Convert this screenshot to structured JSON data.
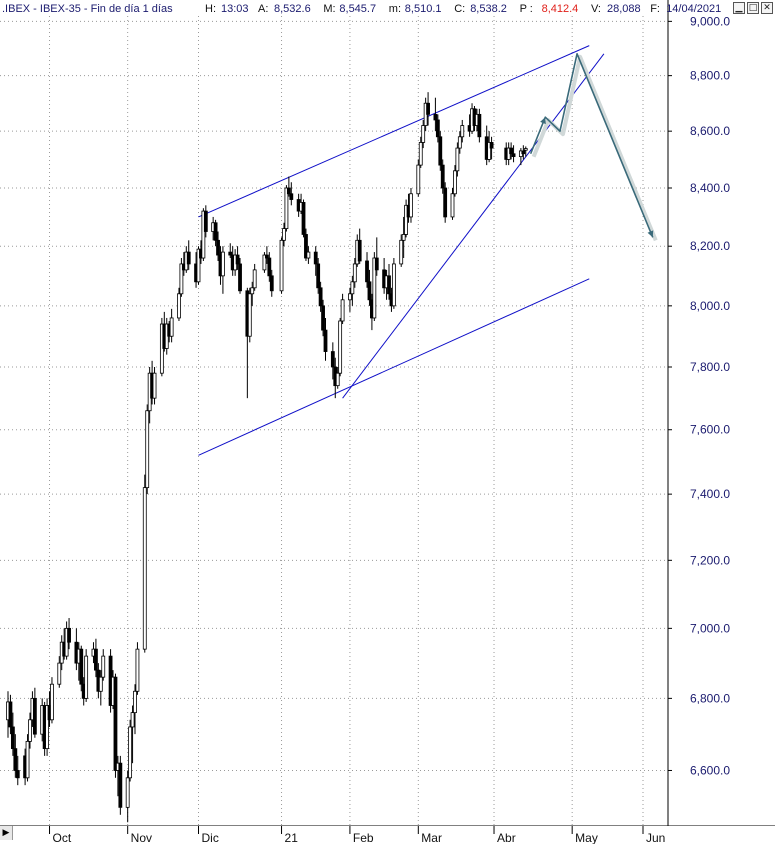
{
  "header": {
    "symbol": ".IBEX - IBEX-35 - Fin de día 1 días",
    "fields": [
      {
        "label": "H:",
        "value": "13:03",
        "color": "#1a1a6e"
      },
      {
        "label": "A:",
        "value": "8,532.6",
        "color": "#1a1a6e"
      },
      {
        "label": "M:",
        "value": "8,545.7",
        "color": "#1a1a6e"
      },
      {
        "label": "m:",
        "value": "8,510.1",
        "color": "#1a1a6e"
      },
      {
        "label": "C:",
        "value": "8,538.2",
        "color": "#1a1a6e"
      },
      {
        "label": "P :",
        "value": "8,412.4",
        "color": "#e0201a"
      },
      {
        "label": "V:",
        "value": "28,088",
        "color": "#1a1a6e"
      },
      {
        "label": "F:",
        "value": "14/04/2021",
        "color": "#1a1a6e"
      }
    ]
  },
  "window_buttons": [
    {
      "name": "minimize-button",
      "glyph": "▁"
    },
    {
      "name": "maximize-button",
      "glyph": "□"
    },
    {
      "name": "close-button",
      "glyph": "✕"
    }
  ],
  "chart_data": {
    "type": "candlestick",
    "y_axis": {
      "ticks": [
        6600,
        6800,
        7000,
        7200,
        7400,
        7600,
        7800,
        8000,
        8200,
        8400,
        8600,
        8800,
        9000
      ],
      "tick_labels": [
        "6,600.0",
        "6,800.0",
        "7,000.0",
        "7,200.0",
        "7,400.0",
        "7,600.0",
        "7,800.0",
        "8,000.0",
        "8,200.0",
        "8,400.0",
        "8,600.0",
        "8,800.0",
        "9,000.0"
      ],
      "range": [
        6450,
        9020
      ],
      "scale": "log",
      "position": "right"
    },
    "x_axis": {
      "labels": [
        "Oct",
        "Nov",
        "Dic",
        "21",
        "Feb",
        "Mar",
        "Abr",
        "May",
        "Jun"
      ],
      "label_dates": [
        "2020-10-01",
        "2020-11-02",
        "2020-12-01",
        "2021-01-04",
        "2021-02-01",
        "2021-03-01",
        "2021-04-01",
        "2021-05-03",
        "2021-06-01"
      ]
    },
    "grid": true,
    "up_color": "#ffffff",
    "down_color": "#000000",
    "candles": [
      [
        "2020-09-14",
        6740,
        6820,
        6690,
        6790
      ],
      [
        "2020-09-15",
        6790,
        6810,
        6700,
        6720
      ],
      [
        "2020-09-16",
        6720,
        6760,
        6640,
        6660
      ],
      [
        "2020-09-17",
        6660,
        6700,
        6580,
        6600
      ],
      [
        "2020-09-18",
        6600,
        6640,
        6560,
        6580
      ],
      [
        "2020-09-21",
        6640,
        6660,
        6560,
        6580
      ],
      [
        "2020-09-22",
        6580,
        6700,
        6570,
        6680
      ],
      [
        "2020-09-23",
        6680,
        6760,
        6660,
        6740
      ],
      [
        "2020-09-24",
        6740,
        6820,
        6720,
        6800
      ],
      [
        "2020-09-25",
        6800,
        6830,
        6690,
        6700
      ],
      [
        "2020-09-28",
        6700,
        6800,
        6680,
        6780
      ],
      [
        "2020-09-29",
        6780,
        6790,
        6640,
        6660
      ],
      [
        "2020-09-30",
        6660,
        6800,
        6640,
        6780
      ],
      [
        "2020-10-01",
        6780,
        6820,
        6720,
        6740
      ],
      [
        "2020-10-02",
        6740,
        6860,
        6730,
        6840
      ],
      [
        "2020-10-05",
        6840,
        6920,
        6830,
        6900
      ],
      [
        "2020-10-06",
        6900,
        6980,
        6880,
        6960
      ],
      [
        "2020-10-07",
        6960,
        7000,
        6910,
        6920
      ],
      [
        "2020-10-08",
        6920,
        7020,
        6910,
        7000
      ],
      [
        "2020-10-09",
        7000,
        7030,
        6940,
        6960
      ],
      [
        "2020-10-12",
        6960,
        7000,
        6880,
        6900
      ],
      [
        "2020-10-13",
        6900,
        6960,
        6850,
        6940
      ],
      [
        "2020-10-14",
        6940,
        6950,
        6820,
        6840
      ],
      [
        "2020-10-15",
        6840,
        6860,
        6780,
        6800
      ],
      [
        "2020-10-16",
        6800,
        6940,
        6790,
        6920
      ],
      [
        "2020-10-19",
        6920,
        6960,
        6900,
        6940
      ],
      [
        "2020-10-20",
        6940,
        6970,
        6860,
        6880
      ],
      [
        "2020-10-21",
        6880,
        6900,
        6800,
        6820
      ],
      [
        "2020-10-22",
        6820,
        6880,
        6780,
        6860
      ],
      [
        "2020-10-23",
        6860,
        6940,
        6850,
        6920
      ],
      [
        "2020-10-26",
        6920,
        6940,
        6760,
        6780
      ],
      [
        "2020-10-27",
        6780,
        6880,
        6770,
        6860
      ],
      [
        "2020-10-28",
        6860,
        6870,
        6580,
        6600
      ],
      [
        "2020-10-29",
        6600,
        6640,
        6530,
        6620
      ],
      [
        "2020-10-30",
        6620,
        6640,
        6480,
        6500
      ],
      [
        "2020-11-02",
        6500,
        6600,
        6460,
        6580
      ],
      [
        "2020-11-03",
        6580,
        6740,
        6570,
        6720
      ],
      [
        "2020-11-04",
        6720,
        6780,
        6620,
        6760
      ],
      [
        "2020-11-05",
        6760,
        6840,
        6700,
        6820
      ],
      [
        "2020-11-06",
        6820,
        6960,
        6810,
        6940
      ],
      [
        "2020-11-09",
        6940,
        7460,
        6930,
        7420
      ],
      [
        "2020-11-10",
        7420,
        7680,
        7400,
        7660
      ],
      [
        "2020-11-11",
        7660,
        7800,
        7620,
        7780
      ],
      [
        "2020-11-12",
        7780,
        7820,
        7680,
        7700
      ],
      [
        "2020-11-13",
        7700,
        7800,
        7680,
        7780
      ],
      [
        "2020-11-16",
        7780,
        7960,
        7770,
        7940
      ],
      [
        "2020-11-17",
        7940,
        7980,
        7850,
        7860
      ],
      [
        "2020-11-18",
        7860,
        7960,
        7840,
        7940
      ],
      [
        "2020-11-19",
        7940,
        7950,
        7880,
        7900
      ],
      [
        "2020-11-20",
        7900,
        7990,
        7880,
        7960
      ],
      [
        "2020-11-23",
        7960,
        8060,
        7950,
        8040
      ],
      [
        "2020-11-24",
        8040,
        8160,
        8030,
        8140
      ],
      [
        "2020-11-25",
        8140,
        8180,
        8100,
        8120
      ],
      [
        "2020-11-26",
        8120,
        8200,
        8110,
        8180
      ],
      [
        "2020-11-27",
        8180,
        8220,
        8120,
        8140
      ],
      [
        "2020-11-30",
        8140,
        8180,
        8060,
        8080
      ],
      [
        "2020-12-01",
        8080,
        8200,
        8070,
        8190
      ],
      [
        "2020-12-02",
        8190,
        8220,
        8140,
        8160
      ],
      [
        "2020-12-03",
        8160,
        8330,
        8150,
        8320
      ],
      [
        "2020-12-04",
        8320,
        8340,
        8230,
        8250
      ],
      [
        "2020-12-07",
        8250,
        8300,
        8220,
        8280
      ],
      [
        "2020-12-08",
        8280,
        8290,
        8200,
        8220
      ],
      [
        "2020-12-09",
        8220,
        8250,
        8150,
        8170
      ],
      [
        "2020-12-10",
        8170,
        8200,
        8070,
        8100
      ],
      [
        "2020-12-11",
        8100,
        8200,
        8040,
        8180
      ],
      [
        "2020-12-14",
        8180,
        8210,
        8160,
        8170
      ],
      [
        "2020-12-15",
        8170,
        8200,
        8100,
        8120
      ],
      [
        "2020-12-16",
        8120,
        8190,
        8100,
        8170
      ],
      [
        "2020-12-17",
        8170,
        8200,
        8120,
        8140
      ],
      [
        "2020-12-18",
        8140,
        8160,
        8040,
        8050
      ],
      [
        "2020-12-21",
        8050,
        8060,
        7700,
        7900
      ],
      [
        "2020-12-22",
        7900,
        8060,
        7880,
        8040
      ],
      [
        "2020-12-23",
        8040,
        8080,
        8000,
        8060
      ],
      [
        "2020-12-24",
        8060,
        8140,
        8050,
        8120
      ],
      [
        "2020-12-28",
        8120,
        8180,
        8110,
        8170
      ],
      [
        "2020-12-29",
        8170,
        8200,
        8140,
        8160
      ],
      [
        "2020-12-30",
        8160,
        8180,
        8080,
        8100
      ],
      [
        "2020-12-31",
        8100,
        8120,
        8030,
        8050
      ],
      [
        "2021-01-04",
        8050,
        8230,
        8040,
        8220
      ],
      [
        "2021-01-05",
        8220,
        8280,
        8200,
        8260
      ],
      [
        "2021-01-06",
        8260,
        8410,
        8250,
        8400
      ],
      [
        "2021-01-07",
        8400,
        8440,
        8370,
        8380
      ],
      [
        "2021-01-08",
        8380,
        8420,
        8340,
        8360
      ],
      [
        "2021-01-11",
        8360,
        8380,
        8300,
        8320
      ],
      [
        "2021-01-12",
        8320,
        8380,
        8310,
        8350
      ],
      [
        "2021-01-13",
        8350,
        8360,
        8230,
        8240
      ],
      [
        "2021-01-14",
        8240,
        8260,
        8150,
        8160
      ],
      [
        "2021-01-15",
        8160,
        8200,
        8140,
        8180
      ],
      [
        "2021-01-18",
        8180,
        8200,
        8100,
        8140
      ],
      [
        "2021-01-19",
        8140,
        8160,
        8040,
        8060
      ],
      [
        "2021-01-20",
        8060,
        8080,
        7980,
        8000
      ],
      [
        "2021-01-21",
        8000,
        8020,
        7900,
        7920
      ],
      [
        "2021-01-22",
        7920,
        7960,
        7820,
        7850
      ],
      [
        "2021-01-25",
        7850,
        7880,
        7760,
        7800
      ],
      [
        "2021-01-26",
        7800,
        7830,
        7700,
        7740
      ],
      [
        "2021-01-27",
        7740,
        7800,
        7730,
        7780
      ],
      [
        "2021-01-28",
        7780,
        7960,
        7770,
        7950
      ],
      [
        "2021-01-29",
        7950,
        8040,
        7940,
        8020
      ],
      [
        "2021-02-01",
        8020,
        8060,
        7980,
        8040
      ],
      [
        "2021-02-02",
        8040,
        8100,
        8000,
        8080
      ],
      [
        "2021-02-03",
        8080,
        8160,
        8060,
        8140
      ],
      [
        "2021-02-04",
        8140,
        8240,
        8130,
        8220
      ],
      [
        "2021-02-05",
        8220,
        8260,
        8140,
        8150
      ],
      [
        "2021-02-08",
        8150,
        8180,
        8060,
        8080
      ],
      [
        "2021-02-09",
        8080,
        8120,
        8000,
        8020
      ],
      [
        "2021-02-10",
        8020,
        8040,
        7920,
        7960
      ],
      [
        "2021-02-11",
        7960,
        8180,
        7950,
        8160
      ],
      [
        "2021-02-12",
        8160,
        8230,
        8100,
        8120
      ],
      [
        "2021-02-15",
        8120,
        8160,
        8040,
        8060
      ],
      [
        "2021-02-16",
        8060,
        8120,
        8020,
        8100
      ],
      [
        "2021-02-17",
        8100,
        8140,
        8020,
        8040
      ],
      [
        "2021-02-18",
        8040,
        8060,
        7980,
        8000
      ],
      [
        "2021-02-19",
        8000,
        8160,
        7990,
        8140
      ],
      [
        "2021-02-22",
        8140,
        8240,
        8130,
        8220
      ],
      [
        "2021-02-23",
        8220,
        8300,
        8160,
        8240
      ],
      [
        "2021-02-24",
        8240,
        8360,
        8230,
        8340
      ],
      [
        "2021-02-25",
        8340,
        8380,
        8280,
        8300
      ],
      [
        "2021-02-26",
        8300,
        8400,
        8280,
        8380
      ],
      [
        "2021-03-01",
        8380,
        8500,
        8370,
        8480
      ],
      [
        "2021-03-02",
        8480,
        8580,
        8470,
        8560
      ],
      [
        "2021-03-03",
        8560,
        8640,
        8540,
        8620
      ],
      [
        "2021-03-04",
        8620,
        8720,
        8600,
        8700
      ],
      [
        "2021-03-05",
        8700,
        8740,
        8620,
        8660
      ],
      [
        "2021-03-08",
        8660,
        8720,
        8600,
        8640
      ],
      [
        "2021-03-09",
        8640,
        8660,
        8560,
        8580
      ],
      [
        "2021-03-10",
        8580,
        8600,
        8460,
        8480
      ],
      [
        "2021-03-11",
        8480,
        8500,
        8380,
        8400
      ],
      [
        "2021-03-12",
        8400,
        8420,
        8280,
        8300
      ],
      [
        "2021-03-15",
        8300,
        8400,
        8290,
        8380
      ],
      [
        "2021-03-16",
        8380,
        8480,
        8370,
        8460
      ],
      [
        "2021-03-17",
        8460,
        8560,
        8440,
        8540
      ],
      [
        "2021-03-18",
        8540,
        8600,
        8520,
        8580
      ],
      [
        "2021-03-19",
        8580,
        8640,
        8560,
        8620
      ],
      [
        "2021-03-22",
        8620,
        8660,
        8580,
        8600
      ],
      [
        "2021-03-23",
        8600,
        8700,
        8590,
        8680
      ],
      [
        "2021-03-24",
        8680,
        8690,
        8600,
        8620
      ],
      [
        "2021-03-25",
        8620,
        8680,
        8600,
        8660
      ],
      [
        "2021-03-26",
        8660,
        8680,
        8560,
        8580
      ],
      [
        "2021-03-29",
        8580,
        8620,
        8480,
        8500
      ],
      [
        "2021-03-30",
        8500,
        8600,
        8490,
        8560
      ],
      [
        "2021-03-31",
        8560,
        8580,
        8500,
        8540
      ],
      [
        "2021-04-06",
        8540,
        8560,
        8480,
        8500
      ],
      [
        "2021-04-07",
        8500,
        8560,
        8480,
        8540
      ],
      [
        "2021-04-08",
        8540,
        8560,
        8500,
        8520
      ],
      [
        "2021-04-09",
        8520,
        8550,
        8490,
        8510
      ],
      [
        "2021-04-12",
        8510,
        8540,
        8480,
        8530
      ],
      [
        "2021-04-13",
        8530,
        8550,
        8500,
        8520
      ],
      [
        "2021-04-14",
        8532.6,
        8545.7,
        8510.1,
        8538.2
      ]
    ],
    "trend_lines": [
      {
        "name": "channel-upper-line",
        "from": [
          "2020-12-01",
          8300
        ],
        "to": [
          "2021-05-10",
          8910
        ]
      },
      {
        "name": "channel-lower-line",
        "from": [
          "2020-12-01",
          7520
        ],
        "to": [
          "2021-05-10",
          8090
        ]
      },
      {
        "name": "rising-support-line",
        "from": [
          "2021-01-29",
          7700
        ],
        "to": [
          "2021-05-16",
          8880
        ]
      }
    ],
    "projection": {
      "name": "projected-path-arrow",
      "points": [
        [
          "2021-04-16",
          8520
        ],
        [
          "2021-04-22",
          8650
        ],
        [
          "2021-04-28",
          8600
        ],
        [
          "2021-05-05",
          8880
        ],
        [
          "2021-06-05",
          8230
        ]
      ]
    }
  }
}
